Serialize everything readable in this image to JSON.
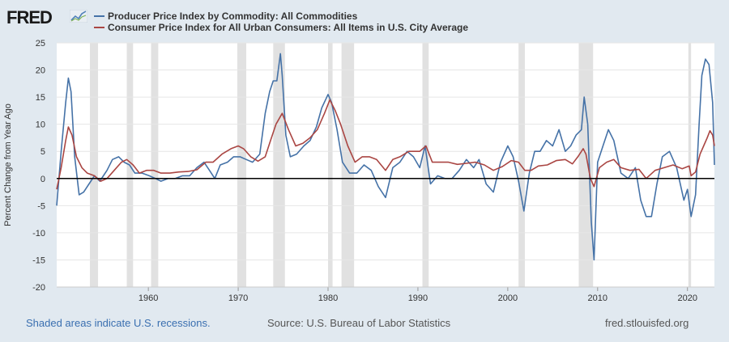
{
  "header": {
    "logo_text": "FRED",
    "logo_icon": "fred-graph-icon"
  },
  "colors": {
    "ppi": "#4572a7",
    "cpi": "#aa4643",
    "recession": "#e1e1e1",
    "zero_line": "#000000",
    "note": "#3a6fb0"
  },
  "footer": {
    "note": "Shaded areas indicate U.S. recessions.",
    "source": "Source: U.S. Bureau of Labor Statistics",
    "site": "fred.stlouisfed.org"
  },
  "chart_data": {
    "type": "line",
    "title": "",
    "xlabel": "",
    "ylabel": "Percent Change from Year Ago",
    "xlim": [
      1949.8,
      2023.0
    ],
    "ylim": [
      -20,
      25
    ],
    "yticks": [
      -20,
      -15,
      -10,
      -5,
      0,
      5,
      10,
      15,
      20,
      25
    ],
    "xticks": [
      1960,
      1970,
      1980,
      1990,
      2000,
      2010,
      2020
    ],
    "recessions": [
      [
        1953.5,
        1954.4
      ],
      [
        1957.6,
        1958.3
      ],
      [
        1960.3,
        1961.1
      ],
      [
        1969.9,
        1970.9
      ],
      [
        1973.9,
        1975.2
      ],
      [
        1980.0,
        1980.5
      ],
      [
        1981.5,
        1982.9
      ],
      [
        1990.5,
        1991.2
      ],
      [
        2001.2,
        2001.9
      ],
      [
        2007.9,
        2009.5
      ],
      [
        2020.1,
        2020.4
      ]
    ],
    "series": [
      {
        "name": "Producer Price Index by Commodity: All Commodities",
        "color": "#4572a7",
        "x": [
          1949.8,
          1950.3,
          1950.8,
          1951.1,
          1951.4,
          1951.8,
          1952.3,
          1952.8,
          1953.4,
          1954.0,
          1954.6,
          1955.4,
          1956.0,
          1956.7,
          1957.3,
          1957.9,
          1958.5,
          1959.3,
          1960.1,
          1960.8,
          1961.4,
          1962.2,
          1963.0,
          1963.8,
          1964.6,
          1965.4,
          1966.2,
          1966.8,
          1967.4,
          1968.0,
          1968.8,
          1969.5,
          1970.2,
          1970.9,
          1971.6,
          1972.4,
          1973.0,
          1973.5,
          1973.9,
          1974.3,
          1974.7,
          1974.9,
          1975.3,
          1975.8,
          1976.5,
          1977.3,
          1978.0,
          1978.7,
          1979.3,
          1980.0,
          1980.4,
          1981.0,
          1981.6,
          1982.4,
          1983.2,
          1984.0,
          1984.8,
          1985.6,
          1986.4,
          1987.2,
          1988.0,
          1988.8,
          1989.5,
          1990.2,
          1990.8,
          1991.4,
          1992.2,
          1993.0,
          1993.8,
          1994.6,
          1995.4,
          1996.2,
          1996.8,
          1997.6,
          1998.4,
          1999.2,
          2000.0,
          2000.6,
          2001.2,
          2001.8,
          2002.4,
          2003.0,
          2003.6,
          2004.3,
          2005.0,
          2005.7,
          2006.4,
          2007.0,
          2007.6,
          2008.2,
          2008.5,
          2008.9,
          2009.3,
          2009.6,
          2010.0,
          2010.6,
          2011.2,
          2011.8,
          2012.6,
          2013.4,
          2014.2,
          2014.8,
          2015.4,
          2016.0,
          2016.6,
          2017.2,
          2018.0,
          2018.8,
          2019.6,
          2020.0,
          2020.4,
          2020.9,
          2021.3,
          2021.6,
          2022.0,
          2022.4,
          2022.8,
          2023.0
        ],
        "values": [
          -5,
          5,
          14,
          18.5,
          16,
          4,
          -3,
          -2.5,
          -1,
          0.5,
          -0.5,
          1.5,
          3.5,
          4,
          3,
          2.5,
          1,
          1,
          0.5,
          0,
          -0.5,
          0,
          0,
          0.5,
          0.5,
          2,
          3,
          1.5,
          0,
          2.5,
          3,
          4,
          4,
          3.5,
          3,
          4.5,
          12,
          16,
          18,
          18,
          23,
          19,
          8,
          4,
          4.5,
          6,
          7,
          9.5,
          13,
          15.5,
          14,
          9,
          3,
          1,
          1,
          2.5,
          1.5,
          -1.5,
          -3.5,
          2,
          3,
          5,
          4,
          2,
          6,
          -1,
          0.5,
          0,
          0,
          1.5,
          3.5,
          2,
          3.5,
          -1,
          -2.5,
          3,
          6,
          4,
          -0.5,
          -6,
          1,
          5,
          5,
          7,
          6,
          9,
          5,
          6,
          8,
          9,
          15,
          10,
          -8,
          -15,
          3,
          6,
          9,
          7,
          1,
          0,
          2,
          -4,
          -7,
          -7,
          -1,
          4,
          5,
          2,
          -4,
          -2,
          -7,
          -3,
          10,
          19,
          22,
          21,
          14,
          2.5
        ]
      },
      {
        "name": "Consumer Price Index for All Urban Consumers: All Items in U.S. City Average",
        "color": "#aa4643",
        "x": [
          1949.8,
          1950.3,
          1950.8,
          1951.1,
          1951.5,
          1952.0,
          1952.6,
          1953.2,
          1954.0,
          1954.7,
          1955.4,
          1956.2,
          1957.0,
          1957.6,
          1958.3,
          1959.0,
          1959.8,
          1960.6,
          1961.4,
          1962.4,
          1963.4,
          1964.4,
          1965.4,
          1966.4,
          1967.2,
          1968.2,
          1969.2,
          1970.0,
          1970.6,
          1971.4,
          1972.2,
          1973.0,
          1973.6,
          1974.2,
          1974.9,
          1975.6,
          1976.4,
          1977.2,
          1978.0,
          1978.8,
          1979.6,
          1980.2,
          1980.8,
          1981.4,
          1982.2,
          1983.0,
          1983.8,
          1984.6,
          1985.4,
          1986.4,
          1987.2,
          1988.0,
          1989.0,
          1990.2,
          1990.9,
          1991.6,
          1992.4,
          1993.4,
          1994.4,
          1995.4,
          1996.4,
          1997.4,
          1998.4,
          1999.4,
          2000.4,
          2001.2,
          2001.9,
          2002.6,
          2003.4,
          2004.4,
          2005.4,
          2006.4,
          2007.2,
          2007.8,
          2008.4,
          2008.7,
          2009.2,
          2009.6,
          2010.2,
          2011.0,
          2011.8,
          2012.6,
          2013.6,
          2014.6,
          2015.4,
          2016.4,
          2017.4,
          2018.4,
          2019.4,
          2020.2,
          2020.4,
          2020.9,
          2021.4,
          2021.8,
          2022.2,
          2022.5,
          2022.8,
          2023.0
        ],
        "values": [
          -2,
          2,
          7,
          9.5,
          8,
          4,
          2,
          1,
          0.5,
          -0.5,
          0,
          1.5,
          3,
          3.5,
          2.5,
          1,
          1.5,
          1.5,
          1,
          1,
          1.2,
          1.3,
          1.6,
          3,
          3,
          4.5,
          5.5,
          6,
          5.5,
          4,
          3.2,
          4,
          7,
          10,
          12,
          9,
          6,
          6.5,
          7.5,
          9,
          12,
          14.5,
          12.5,
          10,
          6,
          3,
          4,
          4,
          3.5,
          1.5,
          3.5,
          4,
          5,
          5,
          6,
          3,
          3,
          3,
          2.6,
          2.8,
          3,
          2.5,
          1.5,
          2.2,
          3.3,
          3,
          1.5,
          1.5,
          2.3,
          2.5,
          3.3,
          3.5,
          2.7,
          4,
          5.5,
          4.5,
          0,
          -1.5,
          2,
          3,
          3.5,
          2,
          1.5,
          1.7,
          0,
          1.5,
          2,
          2.5,
          1.8,
          2.3,
          0.5,
          1.2,
          4.5,
          6,
          7.5,
          8.8,
          8,
          6
        ]
      }
    ]
  }
}
